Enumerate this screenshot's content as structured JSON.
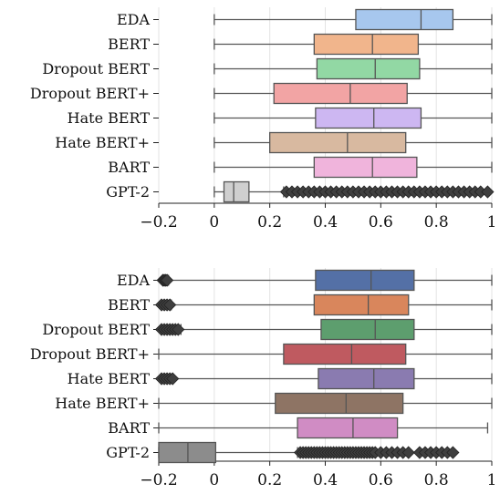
{
  "chart_data": [
    {
      "type": "boxplot",
      "orientation": "horizontal",
      "xlim": [
        -0.2,
        1.0
      ],
      "xticks": [
        -0.2,
        0,
        0.2,
        0.4,
        0.6,
        0.8,
        1
      ],
      "xtick_labels": [
        "−0.2",
        "0",
        "0.2",
        "0.4",
        "0.6",
        "0.8",
        "1"
      ],
      "categories": [
        "EDA",
        "BERT",
        "Dropout BERT",
        "Dropout BERT+",
        "Hate BERT",
        "Hate BERT+",
        "BART",
        "GPT-2"
      ],
      "grid": true,
      "boxes": [
        {
          "label": "EDA",
          "color": "#a7c7ee",
          "whisker_low": 0.0,
          "q1": 0.51,
          "median": 0.745,
          "q3": 0.86,
          "whisker_high": 1.0,
          "outliers": []
        },
        {
          "label": "BERT",
          "color": "#f1b58c",
          "whisker_low": 0.0,
          "q1": 0.36,
          "median": 0.57,
          "q3": 0.735,
          "whisker_high": 1.0,
          "outliers": []
        },
        {
          "label": "Dropout BERT",
          "color": "#92d8a4",
          "whisker_low": 0.0,
          "q1": 0.37,
          "median": 0.58,
          "q3": 0.74,
          "whisker_high": 1.0,
          "outliers": []
        },
        {
          "label": "Dropout BERT+",
          "color": "#f2a4a4",
          "whisker_low": 0.0,
          "q1": 0.215,
          "median": 0.49,
          "q3": 0.695,
          "whisker_high": 1.0,
          "outliers": []
        },
        {
          "label": "Hate BERT",
          "color": "#cdb7f2",
          "whisker_low": 0.0,
          "q1": 0.365,
          "median": 0.575,
          "q3": 0.745,
          "whisker_high": 1.0,
          "outliers": []
        },
        {
          "label": "Hate BERT+",
          "color": "#d8b9a0",
          "whisker_low": 0.0,
          "q1": 0.2,
          "median": 0.48,
          "q3": 0.69,
          "whisker_high": 1.0,
          "outliers": []
        },
        {
          "label": "BART",
          "color": "#f0b4dc",
          "whisker_low": 0.0,
          "q1": 0.36,
          "median": 0.57,
          "q3": 0.73,
          "whisker_high": 1.0,
          "outliers": []
        },
        {
          "label": "GPT-2",
          "color": "#cfcfcf",
          "whisker_low": 0.0,
          "q1": 0.035,
          "median": 0.07,
          "q3": 0.125,
          "whisker_high": 0.25,
          "outliers": [
            0.26,
            0.28,
            0.3,
            0.32,
            0.34,
            0.36,
            0.38,
            0.4,
            0.42,
            0.44,
            0.46,
            0.48,
            0.5,
            0.52,
            0.54,
            0.56,
            0.58,
            0.6,
            0.62,
            0.64,
            0.66,
            0.68,
            0.7,
            0.72,
            0.74,
            0.76,
            0.78,
            0.8,
            0.82,
            0.84,
            0.86,
            0.88,
            0.9,
            0.92,
            0.94,
            0.96,
            0.985
          ]
        }
      ]
    },
    {
      "type": "boxplot",
      "orientation": "horizontal",
      "xlim": [
        -0.2,
        1.0
      ],
      "xticks": [
        -0.2,
        0,
        0.2,
        0.4,
        0.6,
        0.8,
        1
      ],
      "xtick_labels": [
        "−0.2",
        "0",
        "0.2",
        "0.4",
        "0.6",
        "0.8",
        "1"
      ],
      "categories": [
        "EDA",
        "BERT",
        "Dropout BERT",
        "Dropout BERT+",
        "Hate BERT",
        "Hate BERT+",
        "BART",
        "GPT-2"
      ],
      "grid": true,
      "boxes": [
        {
          "label": "EDA",
          "color": "#5470a6",
          "whisker_low": -0.165,
          "q1": 0.365,
          "median": 0.565,
          "q3": 0.72,
          "whisker_high": 1.0,
          "outliers": [
            -0.185,
            -0.18,
            -0.175,
            -0.17
          ]
        },
        {
          "label": "BERT",
          "color": "#d9865c",
          "whisker_low": -0.155,
          "q1": 0.36,
          "median": 0.555,
          "q3": 0.7,
          "whisker_high": 1.0,
          "outliers": [
            -0.19,
            -0.18,
            -0.17,
            -0.16
          ]
        },
        {
          "label": "Dropout BERT",
          "color": "#5d9e6e",
          "whisker_low": -0.12,
          "q1": 0.385,
          "median": 0.58,
          "q3": 0.72,
          "whisker_high": 1.0,
          "outliers": [
            -0.19,
            -0.18,
            -0.17,
            -0.16,
            -0.15,
            -0.14,
            -0.13
          ]
        },
        {
          "label": "Dropout BERT+",
          "color": "#bf5a60",
          "whisker_low": -0.2,
          "q1": 0.25,
          "median": 0.495,
          "q3": 0.69,
          "whisker_high": 1.0,
          "outliers": []
        },
        {
          "label": "Hate BERT",
          "color": "#8a7bb0",
          "whisker_low": -0.15,
          "q1": 0.375,
          "median": 0.575,
          "q3": 0.72,
          "whisker_high": 1.0,
          "outliers": [
            -0.19,
            -0.18,
            -0.17,
            -0.16,
            -0.15
          ]
        },
        {
          "label": "Hate BERT+",
          "color": "#8e7464",
          "whisker_low": -0.2,
          "q1": 0.22,
          "median": 0.475,
          "q3": 0.68,
          "whisker_high": 1.0,
          "outliers": []
        },
        {
          "label": "BART",
          "color": "#d08cc4",
          "whisker_low": -0.2,
          "q1": 0.3,
          "median": 0.5,
          "q3": 0.66,
          "whisker_high": 0.985,
          "outliers": []
        },
        {
          "label": "GPT-2",
          "color": "#8c8c8c",
          "whisker_low": -0.2,
          "q1": -0.2,
          "median": -0.095,
          "q3": 0.005,
          "whisker_high": 0.3,
          "outliers": [
            0.31,
            0.32,
            0.33,
            0.34,
            0.35,
            0.36,
            0.37,
            0.38,
            0.39,
            0.4,
            0.41,
            0.42,
            0.43,
            0.44,
            0.45,
            0.46,
            0.47,
            0.48,
            0.49,
            0.5,
            0.51,
            0.52,
            0.53,
            0.54,
            0.55,
            0.56,
            0.57,
            0.58,
            0.6,
            0.62,
            0.64,
            0.66,
            0.68,
            0.7,
            0.74,
            0.76,
            0.78,
            0.8,
            0.82,
            0.84,
            0.86
          ]
        }
      ]
    }
  ]
}
